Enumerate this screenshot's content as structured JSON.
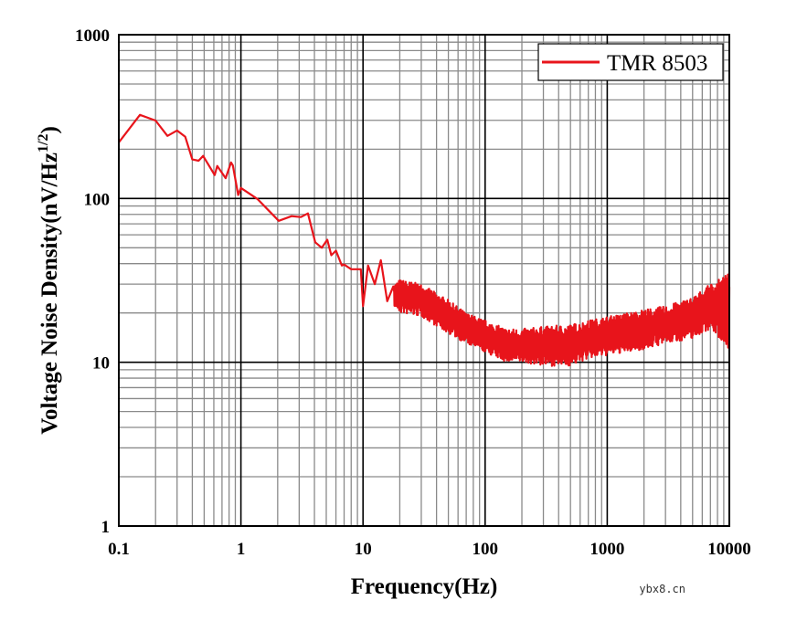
{
  "chart_data": {
    "type": "line",
    "title": "",
    "xlabel": "Frequency(Hz)",
    "ylabel": "Voltage Noise Density(nV/Hz",
    "ylabel_superscript": "1/2",
    "ylabel_suffix": ")",
    "x_scale": "log",
    "y_scale": "log",
    "xlim": [
      0.1,
      10000
    ],
    "ylim": [
      1,
      1000
    ],
    "x_ticks": [
      "0.1",
      "1",
      "10",
      "100",
      "1000",
      "10000"
    ],
    "y_ticks": [
      "1",
      "10",
      "100",
      "1000"
    ],
    "grid": true,
    "legend_position": "top-right",
    "color": "#e8141b",
    "series": [
      {
        "name": "TMR 8503",
        "x": [
          0.1,
          0.149,
          0.2,
          0.25,
          0.3,
          0.35,
          0.4,
          0.45,
          0.49,
          0.61,
          0.64,
          0.75,
          0.83,
          0.86,
          0.95,
          1.0,
          1.37,
          2.04,
          2.6,
          3.1,
          3.54,
          4.06,
          4.6,
          5.1,
          5.5,
          6.0,
          6.7,
          7.0,
          8.0,
          9.6,
          10,
          11,
          12.5,
          14,
          15.8,
          17.7
        ],
        "y": [
          220,
          324,
          299,
          241,
          260,
          238,
          173,
          170,
          182,
          139,
          158,
          133,
          166,
          159,
          105,
          116,
          99,
          73,
          78,
          77,
          81,
          54,
          50,
          56,
          45,
          48,
          39,
          39.5,
          37,
          37,
          22,
          39,
          30,
          42,
          23.6,
          29
        ],
        "noise_band": {
          "x": [
            18,
            20,
            30,
            50,
            70,
            100,
            150,
            200,
            300,
            500,
            700,
            1000,
            2000,
            3000,
            5000,
            7000,
            10000
          ],
          "upper": [
            30,
            32,
            30,
            24,
            20,
            18,
            16,
            16,
            16.5,
            17,
            18,
            19,
            21,
            22,
            25,
            30,
            35
          ],
          "lower": [
            22,
            20,
            19,
            15,
            13,
            11.5,
            10,
            10,
            9.5,
            9.5,
            10.5,
            11,
            12,
            13,
            14,
            16,
            12
          ]
        }
      }
    ]
  },
  "watermark": "ybx8.cn"
}
